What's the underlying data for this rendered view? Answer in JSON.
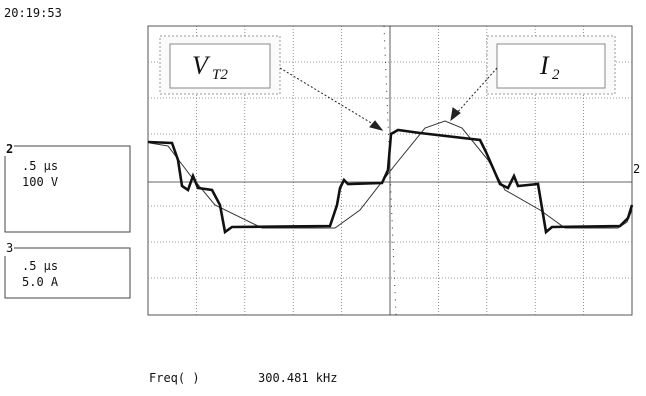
{
  "header": {
    "timestamp": "20:19:53"
  },
  "channels": [
    {
      "number": "2",
      "timebase": ".5 µs",
      "scale": "100 V"
    },
    {
      "number": "3",
      "timebase": ".5 µs",
      "scale": "5.0 A"
    }
  ],
  "trace_labels": [
    {
      "symbol": "V",
      "subscript": "T2"
    },
    {
      "symbol": "I",
      "subscript": "2"
    }
  ],
  "level_marker": "2",
  "measurement": {
    "name": "Freq( )",
    "value": "300.481 kHz"
  }
}
